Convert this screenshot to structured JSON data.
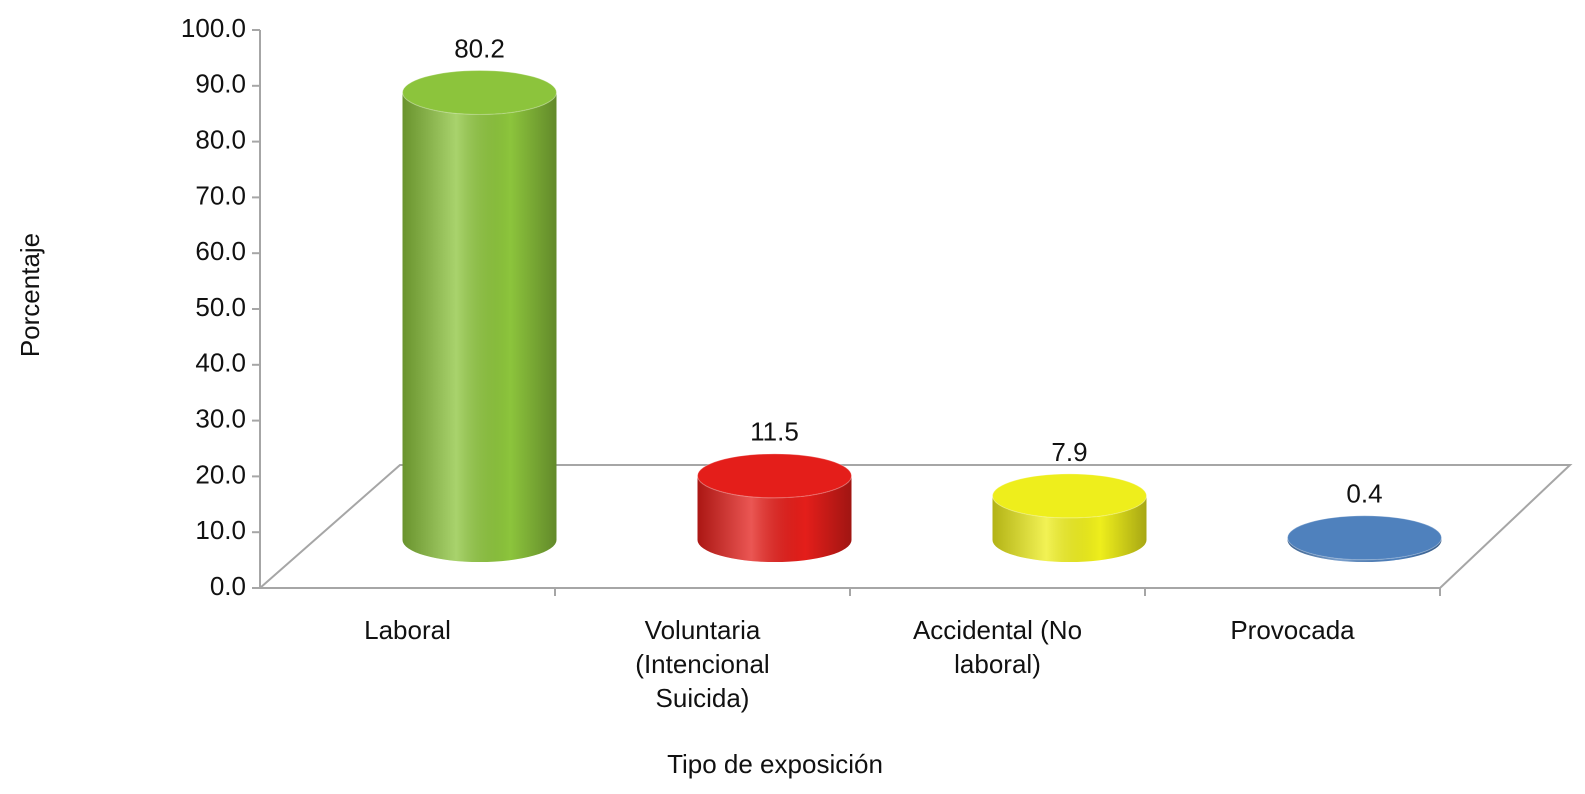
{
  "chart_data": {
    "type": "bar3d",
    "categories": [
      "Laboral",
      "Voluntaria (Intencional Suicida)",
      "Accidental (No laboral)",
      "Provocada"
    ],
    "values": [
      80.2,
      11.5,
      7.9,
      0.4
    ],
    "colors": [
      "#8cc43c",
      "#e41e1a",
      "#eeee1c",
      "#4f81bd"
    ],
    "x_label": "Tipo de  exposición",
    "y_label": "Porcentaje",
    "ylim": [
      0,
      100
    ],
    "yticks": [
      {
        "value": 0,
        "label": "0.0"
      },
      {
        "value": 10,
        "label": "10.0"
      },
      {
        "value": 20,
        "label": "20.0"
      },
      {
        "value": 30,
        "label": "30.0"
      },
      {
        "value": 40,
        "label": "40.0"
      },
      {
        "value": 50,
        "label": "50.0"
      },
      {
        "value": 60,
        "label": "60.0"
      },
      {
        "value": 70,
        "label": "70.0"
      },
      {
        "value": 80,
        "label": "80.0"
      },
      {
        "value": 90,
        "label": "90.0"
      },
      {
        "value": 100,
        "label": "100.0"
      }
    ]
  }
}
